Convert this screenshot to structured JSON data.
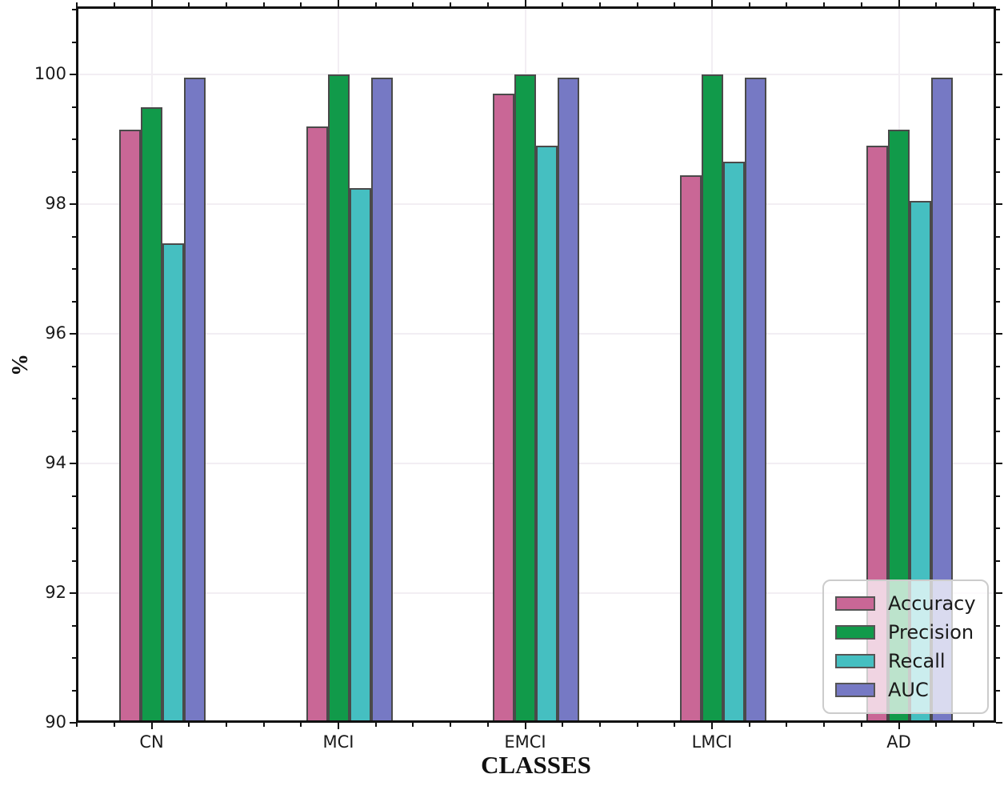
{
  "chart_data": {
    "type": "bar",
    "title": "",
    "xlabel": "CLASSES",
    "ylabel": "%",
    "categories": [
      "CN",
      "MCI",
      "EMCI",
      "LMCI",
      "AD"
    ],
    "series": [
      {
        "name": "Accuracy",
        "color": "#c96796",
        "values": [
          99.15,
          99.2,
          99.7,
          98.45,
          98.9
        ]
      },
      {
        "name": "Precision",
        "color": "#119a4a",
        "values": [
          99.5,
          100.0,
          100.0,
          100.0,
          99.15
        ]
      },
      {
        "name": "Recall",
        "color": "#45bfc1",
        "values": [
          97.4,
          98.25,
          98.9,
          98.65,
          98.05
        ]
      },
      {
        "name": "AUC",
        "color": "#7679c4",
        "values": [
          99.95,
          99.95,
          99.95,
          99.95,
          99.95
        ]
      }
    ],
    "ylim": [
      90,
      101.05
    ],
    "yticks": [
      90,
      92,
      94,
      96,
      98,
      100
    ],
    "y_minor_step": 0.5,
    "grid": true,
    "legend_position": "lower right"
  },
  "colors": {
    "bar_edge": "#4a4a4a",
    "spine": "#111111",
    "grid": "#f2eef3",
    "tick_text": "#1a1a1a",
    "background": "#ffffff",
    "legend_border": "#cccccc"
  }
}
